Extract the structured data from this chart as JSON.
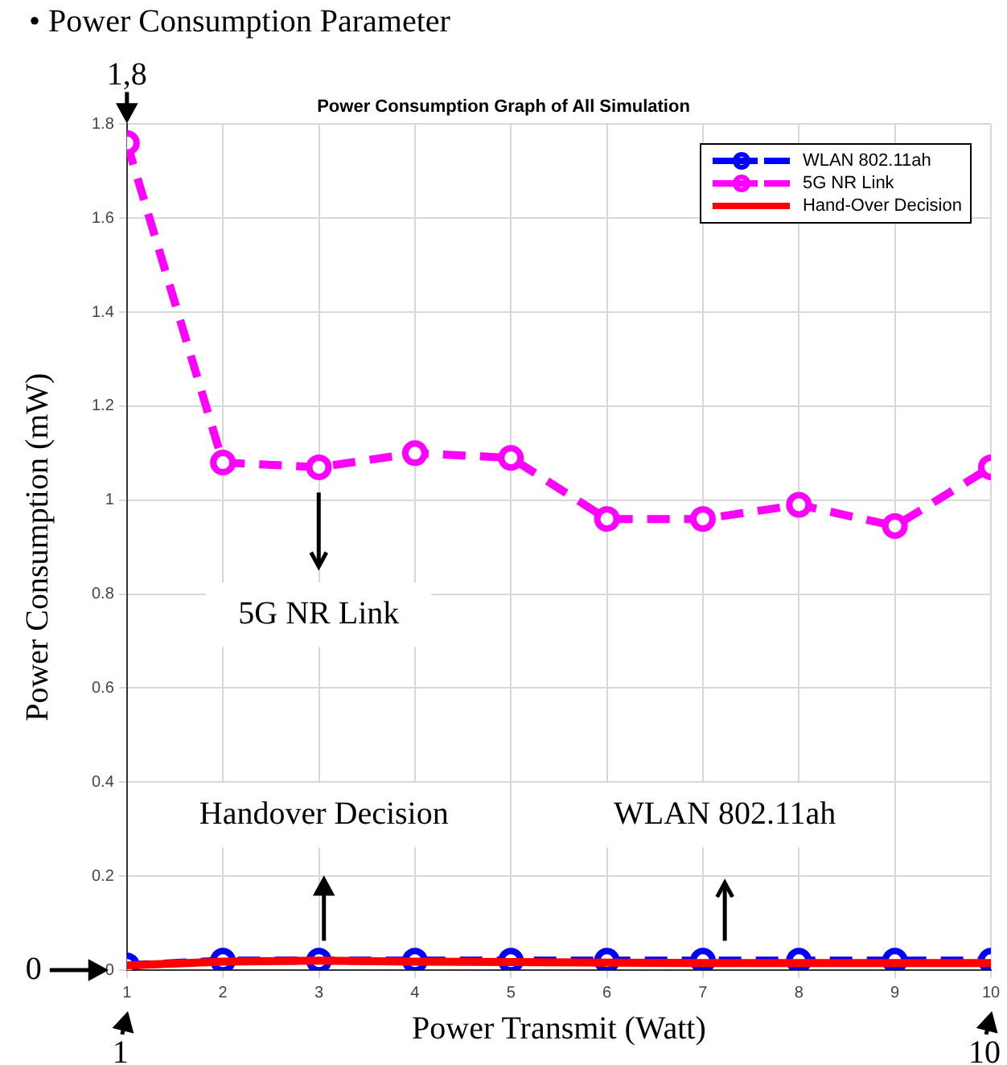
{
  "chart_data": {
    "type": "line",
    "title": "Power Consumption Graph of All Simulation",
    "xlabel": "Power Transmit (Watt)",
    "ylabel": "Power Consumption (mW)",
    "x": [
      1,
      2,
      3,
      4,
      5,
      6,
      7,
      8,
      9,
      10
    ],
    "series": [
      {
        "name": "WLAN 802.11ah",
        "color": "#0000ff",
        "marker": "circle",
        "line_style": "dashed",
        "values": [
          0.01,
          0.02,
          0.02,
          0.02,
          0.02,
          0.02,
          0.02,
          0.02,
          0.02,
          0.02
        ]
      },
      {
        "name": "5G NR Link",
        "color": "#ff00ff",
        "marker": "circle",
        "line_style": "dashed",
        "values": [
          1.76,
          1.08,
          1.07,
          1.1,
          1.09,
          0.96,
          0.96,
          0.99,
          0.945,
          1.07
        ]
      },
      {
        "name": "Hand-Over Decision",
        "color": "#ff0000",
        "marker": "none",
        "line_style": "solid",
        "values": [
          0.01,
          0.018,
          0.02,
          0.018,
          0.017,
          0.016,
          0.015,
          0.015,
          0.015,
          0.015
        ]
      }
    ],
    "xlim": [
      1,
      10
    ],
    "xticks": [
      1,
      2,
      3,
      4,
      5,
      6,
      7,
      8,
      9,
      10
    ],
    "ylim": [
      0,
      1.8
    ],
    "yticks": [
      0,
      0.2,
      0.4,
      0.6,
      0.8,
      1,
      1.2,
      1.4,
      1.6,
      1.8
    ],
    "grid": true,
    "legend": "top right",
    "annotations": [
      "• Power Consumption Parameter",
      "1,8",
      "0",
      "1",
      "10",
      "5G NR Link",
      "Handover Decision",
      "WLAN 802.11ah"
    ]
  }
}
